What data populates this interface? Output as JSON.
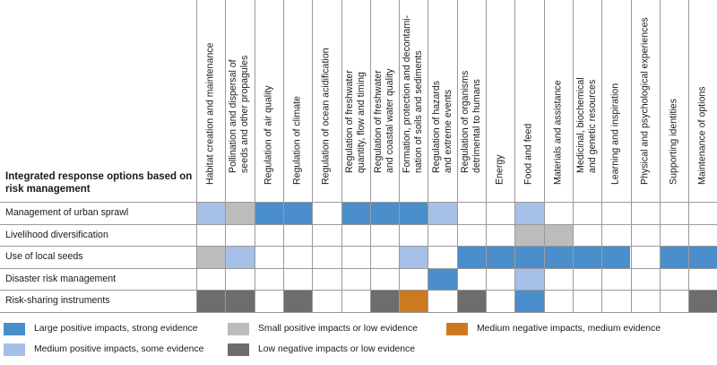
{
  "title": "Integrated response options based on risk management",
  "colors": {
    "large_positive": "#4a8ecb",
    "medium_positive": "#a5bfe6",
    "small_positive": "#bcbcbc",
    "low_negative": "#6d6d6d",
    "medium_negative": "#cc7a22"
  },
  "columns": [
    "Habitat creation and maintenance",
    "Pollination and dispersal of\nseeds and other propagules",
    "Regulation of air quality",
    "Regulation of climate",
    "Regulation of ocean acidification",
    "Regulation of freshwater\nquantity, flow and timing",
    "Regulation of freshwater\nand coastal water quality",
    "Formation, protection and decontami-\nnation of soils and sediments",
    "Regulation of hazards\nand extreme events",
    "Regulation of organisms\ndetrimental to humans",
    "Energy",
    "Food and feed",
    "Materials and assistance",
    "Medicinal, biochemical\nand genetic resources",
    "Learning and inspiration",
    "Physical and psychological experiences",
    "Supporting identities",
    "Maintenance of options"
  ],
  "rows": [
    {
      "label": "Management of urban sprawl",
      "cells": [
        "medium_positive",
        "small_positive",
        "large_positive",
        "large_positive",
        "",
        "large_positive",
        "large_positive",
        "large_positive",
        "medium_positive",
        "",
        "",
        "medium_positive",
        "",
        "",
        "",
        "",
        "",
        ""
      ]
    },
    {
      "label": "Livelihood diversification",
      "cells": [
        "",
        "",
        "",
        "",
        "",
        "",
        "",
        "",
        "",
        "",
        "",
        "small_positive",
        "small_positive",
        "",
        "",
        "",
        "",
        ""
      ]
    },
    {
      "label": "Use of local seeds",
      "cells": [
        "small_positive",
        "medium_positive",
        "",
        "",
        "",
        "",
        "",
        "medium_positive",
        "",
        "large_positive",
        "large_positive",
        "large_positive",
        "large_positive",
        "large_positive",
        "large_positive",
        "",
        "large_positive",
        "large_positive"
      ]
    },
    {
      "label": "Disaster risk management",
      "cells": [
        "",
        "",
        "",
        "",
        "",
        "",
        "",
        "",
        "large_positive",
        "",
        "",
        "medium_positive",
        "",
        "",
        "",
        "",
        "",
        ""
      ]
    },
    {
      "label": "Risk-sharing instruments",
      "cells": [
        "low_negative",
        "low_negative",
        "",
        "low_negative",
        "",
        "",
        "low_negative",
        "medium_negative",
        "",
        "low_negative",
        "",
        "large_positive",
        "",
        "",
        "",
        "",
        "",
        "low_negative"
      ]
    }
  ],
  "legend": [
    {
      "key": "large_positive",
      "label": "Large positive impacts, strong evidence"
    },
    {
      "key": "small_positive",
      "label": "Small positive impacts or low evidence"
    },
    {
      "key": "medium_negative",
      "label": "Medium negative impacts, medium evidence"
    },
    {
      "key": "medium_positive",
      "label": "Medium positive impacts, some evidence"
    },
    {
      "key": "low_negative",
      "label": "Low negative impacts or low evidence"
    }
  ]
}
